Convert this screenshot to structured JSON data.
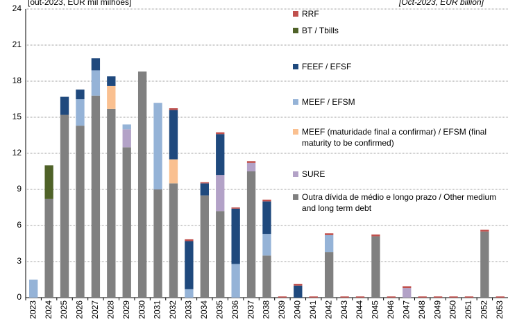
{
  "chart_data": {
    "type": "stacked_bar",
    "subtitle_left": "[out-2023, EUR mil milhões]",
    "subtitle_right": "[Oct-2023, EUR billion]",
    "categories": [
      "2023",
      "2024",
      "2025",
      "2026",
      "2027",
      "2028",
      "2029",
      "2030",
      "2031",
      "2032",
      "2033",
      "2034",
      "2035",
      "2036",
      "2037",
      "2038",
      "2039",
      "2040",
      "2041",
      "2042",
      "2043",
      "2044",
      "2045",
      "2046",
      "2047",
      "2048",
      "2049",
      "2050",
      "2051",
      "2052",
      "2053"
    ],
    "ylim": [
      0,
      24
    ],
    "yticks": [
      0,
      3,
      6,
      9,
      12,
      15,
      18,
      21,
      24
    ],
    "grid": true,
    "series": [
      {
        "name": "Outra dívida de médio e longo prazo / Other medium and long term debt",
        "color": "#808080",
        "values": [
          0,
          8.2,
          15.2,
          14.3,
          16.8,
          15.7,
          12.5,
          18.8,
          9.0,
          9.5,
          0,
          8.5,
          7.2,
          0,
          10.5,
          3.5,
          0,
          0,
          0,
          3.8,
          0,
          0,
          5.1,
          0,
          0,
          0,
          0,
          0,
          0,
          5.5,
          0
        ]
      },
      {
        "name": "SURE",
        "color": "#b3a2c7",
        "values": [
          0,
          0,
          0,
          0,
          0,
          0,
          1.5,
          0,
          0,
          0,
          0,
          0,
          3.0,
          0,
          0.7,
          0,
          0,
          0,
          0,
          0,
          0,
          0,
          0,
          0,
          0.8,
          0,
          0,
          0,
          0,
          0,
          0
        ]
      },
      {
        "name": "MEEF (maturidade final a confirmar) / EFSM (final maturity to be confirmed)",
        "color": "#fac090",
        "values": [
          0,
          0,
          0,
          0,
          0,
          1.9,
          0,
          0,
          0,
          2.0,
          0,
          0,
          0,
          0,
          0,
          0,
          0,
          0,
          0,
          0,
          0,
          0,
          0,
          0,
          0,
          0,
          0,
          0,
          0,
          0,
          0
        ]
      },
      {
        "name": "MEEF / EFSM",
        "color": "#95b3d7",
        "values": [
          1.5,
          0,
          0,
          2.2,
          2.1,
          0,
          0.4,
          0,
          7.2,
          0,
          0.7,
          0,
          0,
          2.8,
          0,
          1.8,
          0,
          0,
          0,
          1.4,
          0,
          0,
          0,
          0,
          0,
          0,
          0,
          0,
          0,
          0,
          0
        ]
      },
      {
        "name": "FEEF / EFSF",
        "color": "#1f497d",
        "values": [
          0,
          0,
          1.5,
          0.8,
          1.0,
          0.8,
          0,
          0,
          0,
          4.1,
          4.0,
          1.0,
          3.4,
          4.6,
          0,
          2.7,
          0,
          1.0,
          0,
          0,
          0,
          0,
          0,
          0,
          0,
          0,
          0,
          0,
          0,
          0,
          0
        ]
      },
      {
        "name": "BT / Tbills",
        "color": "#4f6228",
        "values": [
          0,
          2.8,
          0,
          0,
          0,
          0,
          0,
          0,
          0,
          0,
          0,
          0,
          0,
          0,
          0,
          0,
          0,
          0,
          0,
          0,
          0,
          0,
          0,
          0,
          0,
          0,
          0,
          0,
          0,
          0,
          0
        ]
      },
      {
        "name": "RRF",
        "color": "#c0504d",
        "values": [
          0,
          0,
          0,
          0,
          0,
          0,
          0,
          0,
          0,
          0.15,
          0.15,
          0.1,
          0.15,
          0.1,
          0.15,
          0.15,
          0.1,
          0.15,
          0.1,
          0.15,
          0.1,
          0.1,
          0.15,
          0.1,
          0.15,
          0.1,
          0.1,
          0.1,
          0.1,
          0.15,
          0.1
        ]
      }
    ]
  }
}
